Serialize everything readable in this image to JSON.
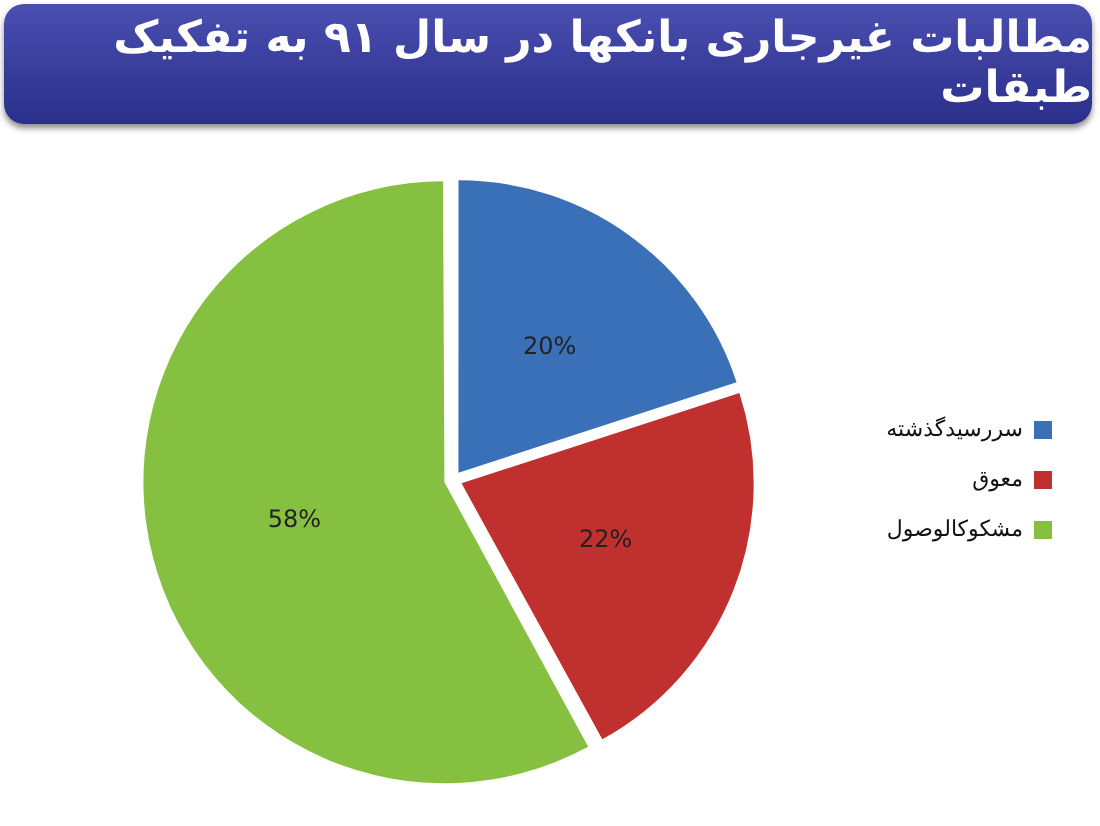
{
  "chart_data": {
    "type": "pie",
    "title": "مطالبات غیرجاری بانکها در سال ۹۱ به تفکیک طبقات",
    "categories": [
      "سررسیدگذشته",
      "معوق",
      "مشکوکالوصول"
    ],
    "values": [
      20,
      22,
      58
    ],
    "value_labels": [
      "20%",
      "22%",
      "58%"
    ],
    "colors": [
      "#3a70b8",
      "#c0302e",
      "#86c040"
    ],
    "legend": "right"
  }
}
